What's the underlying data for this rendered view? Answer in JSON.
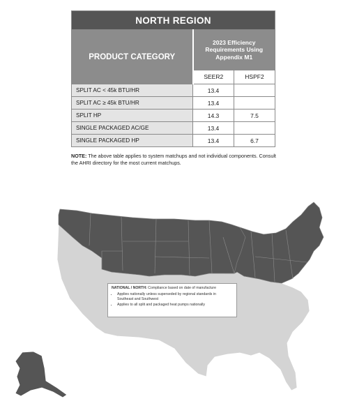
{
  "table": {
    "region_title": "NORTH REGION",
    "product_category_header": "PRODUCT CATEGORY",
    "efficiency_header": [
      "2023 Efficiency",
      "Requirements Using",
      "Appendix M1"
    ],
    "metric_headers": [
      "SEER2",
      "HSPF2"
    ],
    "rows": [
      {
        "category": "SPLIT AC < 45k BTU/HR",
        "seer2": "13.4",
        "hspf2": ""
      },
      {
        "category": "SPLIT AC ≥ 45k BTU/HR",
        "seer2": "13.4",
        "hspf2": ""
      },
      {
        "category": "SPLIT HP",
        "seer2": "14.3",
        "hspf2": "7.5"
      },
      {
        "category": "SINGLE PACKAGED AC/GE",
        "seer2": "13.4",
        "hspf2": ""
      },
      {
        "category": "SINGLE PACKAGED HP",
        "seer2": "13.4",
        "hspf2": "6.7"
      }
    ]
  },
  "note": {
    "label": "NOTE:",
    "text": " The above table applies to system matchups and not individual components. Consult the AHRI directory for the most current matchups."
  },
  "map": {
    "north_color": "#555555",
    "south_color": "#d4d4d4",
    "callout": {
      "title": "NATIONAL / NORTH:",
      "title_rest": " Compliance based on date of manufacture",
      "bullets": [
        "Applies nationally unless superseded by regional standards in Southeast and Southwest",
        "Applies to all split and packaged heat pumps nationally"
      ]
    }
  }
}
